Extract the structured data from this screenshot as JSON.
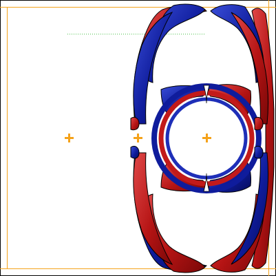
{
  "colors": {
    "background": "#ffffff",
    "frame": "#f5a21a",
    "guide": "#4cc24c",
    "marker": "#f5a21a",
    "lobe_red": "#b51414",
    "lobe_red_highlight": "#e04848",
    "lobe_blue": "#0f1c9c",
    "lobe_blue_highlight": "#3a4ed8",
    "outline": "#000000"
  },
  "markers": [
    {
      "name": "left"
    },
    {
      "name": "middle"
    },
    {
      "name": "right"
    }
  ]
}
